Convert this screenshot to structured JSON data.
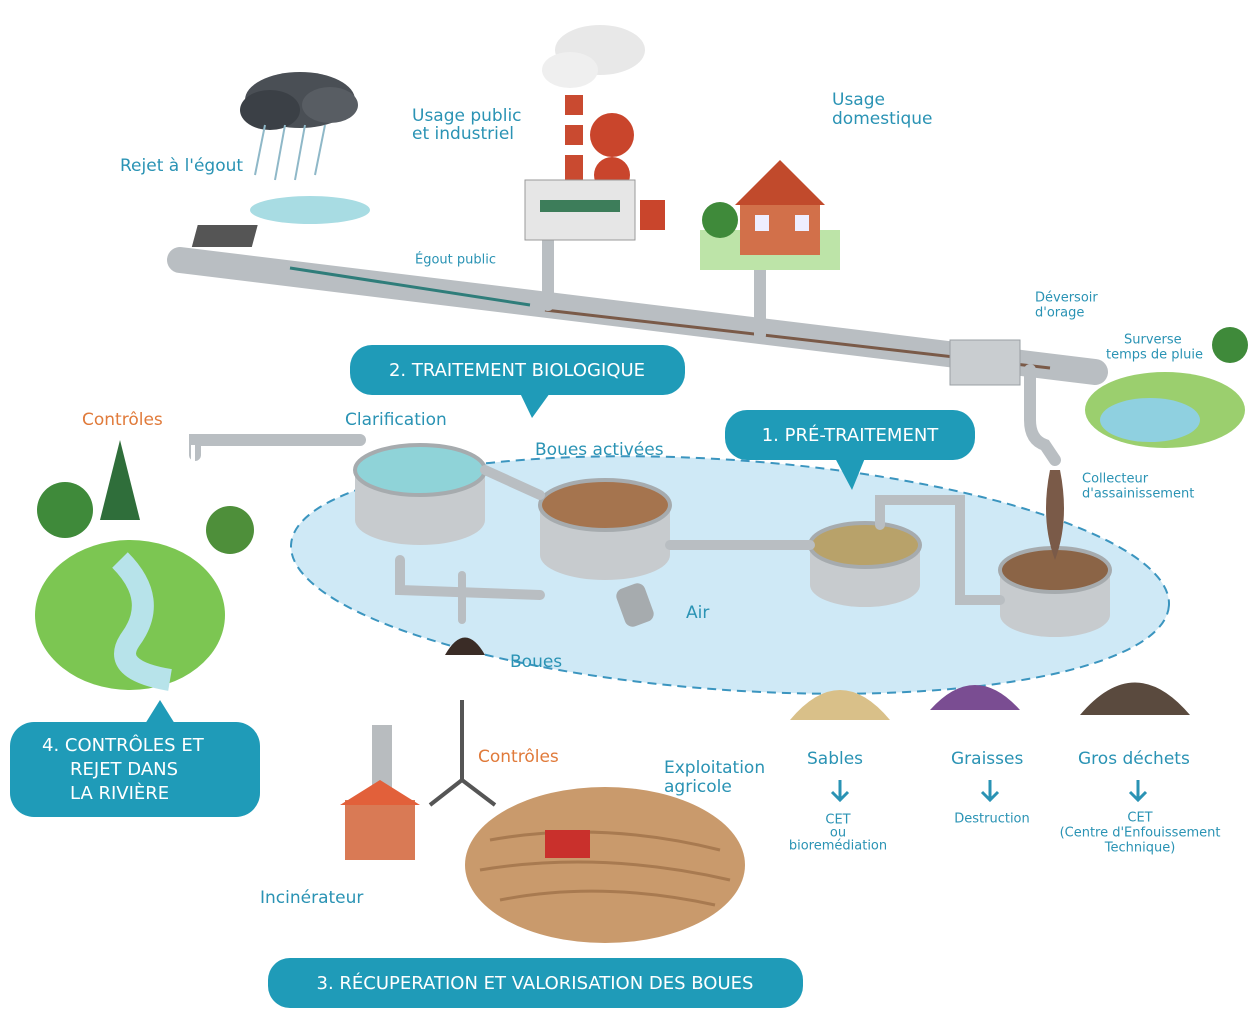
{
  "labels": {
    "rejet_egout": "Rejet à l'égout",
    "usage_public": [
      "Usage public",
      "et industriel"
    ],
    "usage_domestique": [
      "Usage",
      "domestique"
    ],
    "egout_public": "Égout public",
    "deversoir": [
      "Déversoir",
      "d'orage"
    ],
    "surverse": [
      "Surverse",
      "temps de pluie"
    ],
    "collecteur": [
      "Collecteur",
      "d'assainissement"
    ],
    "clarification": "Clarification",
    "boues_activees": "Boues activées",
    "controles_1": "Contrôles",
    "controles_2": "Contrôles",
    "air": "Air",
    "boues": "Boues",
    "sables": "Sables",
    "graisses": "Graisses",
    "gros_dechets": "Gros déchets",
    "sables_dest": [
      "CET",
      "ou",
      "bioremédiation"
    ],
    "graisses_dest": "Destruction",
    "gros_dechets_dest": [
      "CET",
      "(Centre d'Enfouissement",
      "Technique)"
    ],
    "exploitation": [
      "Exploitation",
      "agricole"
    ],
    "incinerateur": "Incinérateur"
  },
  "steps": {
    "pretraitement": "1. PRÉ-TRAITEMENT",
    "biologique": "2. TRAITEMENT BIOLOGIQUE",
    "recuperation": "3. RÉCUPERATION ET VALORISATION DES BOUES",
    "rejet": [
      "4. CONTRÔLES ET",
      "REJET DANS",
      "LA RIVIÈRE"
    ]
  }
}
